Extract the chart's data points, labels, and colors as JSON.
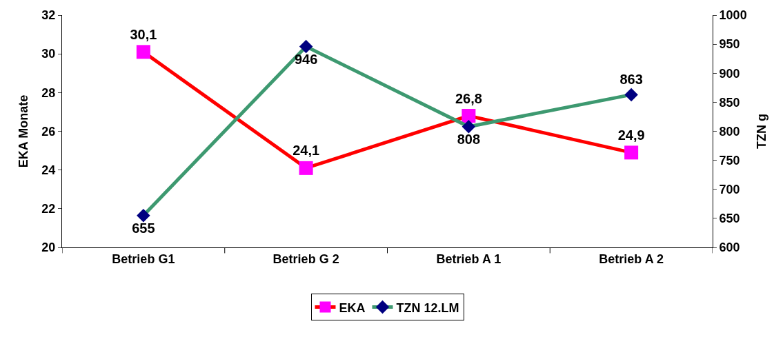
{
  "chart_data": {
    "type": "line",
    "ylabel": "EKA Monate",
    "y2label": "TZN g",
    "categories": [
      "Betrieb G1",
      "Betrieb G 2",
      "Betrieb A 1",
      "Betrieb A 2"
    ],
    "series": [
      {
        "name": "EKA",
        "color": "#ff0000",
        "colors": [
          "#ff00ff",
          "#ff00ff",
          "#ff00ff",
          "#ff00ff"
        ],
        "marker": "square",
        "values": [
          30.1,
          24.1,
          26.8,
          24.9
        ],
        "value_labels": [
          "30,1",
          "24,1",
          "26,8",
          "24,9"
        ]
      },
      {
        "name": "TZN 12.LM",
        "color": "#3d9970",
        "colors": [
          "#000080",
          "#000080",
          "#000080",
          "#000080"
        ],
        "marker": "diamond",
        "axis": "y2",
        "values": [
          655,
          946,
          808,
          863
        ],
        "value_labels": [
          "655",
          "946",
          "808",
          "863"
        ]
      }
    ],
    "ylim": [
      20,
      32
    ],
    "yticks": [
      20,
      22,
      24,
      26,
      28,
      30,
      32
    ],
    "y2lim": [
      600,
      1000
    ],
    "y2ticks": [
      600,
      650,
      700,
      750,
      800,
      850,
      900,
      950,
      1000
    ],
    "legend": "bottom",
    "line_style": "solid"
  }
}
